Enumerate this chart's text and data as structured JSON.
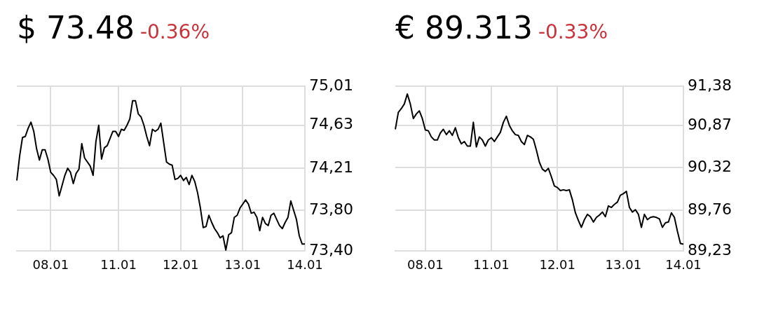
{
  "chart_data": [
    {
      "type": "line",
      "title": "$ 73.48",
      "subtitle": "-0.36%",
      "grid": true,
      "legend": false,
      "marker": "none",
      "line_style": "solid",
      "categories": [
        null,
        null,
        null,
        null,
        null,
        null,
        null,
        null,
        null,
        null,
        null,
        null,
        "08.01",
        null,
        null,
        null,
        null,
        null,
        null,
        null,
        null,
        null,
        null,
        null,
        null,
        null,
        null,
        null,
        null,
        null,
        null,
        null,
        null,
        null,
        null,
        null,
        "11.01",
        null,
        null,
        null,
        null,
        null,
        null,
        null,
        null,
        null,
        null,
        null,
        null,
        null,
        null,
        null,
        null,
        null,
        null,
        null,
        null,
        null,
        "12.01",
        null,
        null,
        null,
        null,
        null,
        null,
        null,
        null,
        null,
        null,
        null,
        null,
        null,
        null,
        null,
        null,
        null,
        null,
        null,
        null,
        null,
        "13.01",
        null,
        null,
        null,
        null,
        null,
        null,
        null,
        null,
        null,
        null,
        null,
        null,
        null,
        null,
        null,
        null,
        null,
        null,
        null,
        null,
        null,
        "14.01"
      ],
      "ylim": [
        73.4,
        75.01
      ],
      "yticks": [
        {
          "value": 73.4,
          "label": "73,40"
        },
        {
          "value": 73.8,
          "label": "73,80"
        },
        {
          "value": 74.21,
          "label": "74,21"
        },
        {
          "value": 74.63,
          "label": "74,63"
        },
        {
          "value": 75.01,
          "label": "75,01"
        }
      ],
      "series": [
        {
          "color": "#000000",
          "values": [
            74.09,
            74.33,
            74.51,
            74.52,
            74.6,
            74.66,
            74.57,
            74.4,
            74.29,
            74.39,
            74.39,
            74.3,
            74.17,
            74.14,
            74.1,
            73.94,
            74.04,
            74.14,
            74.21,
            74.17,
            74.06,
            74.16,
            74.2,
            74.45,
            74.31,
            74.27,
            74.23,
            74.14,
            74.47,
            74.63,
            74.3,
            74.41,
            74.43,
            74.5,
            74.57,
            74.57,
            74.52,
            74.59,
            74.58,
            74.63,
            74.69,
            74.87,
            74.87,
            74.74,
            74.71,
            74.63,
            74.52,
            74.43,
            74.59,
            74.57,
            74.59,
            74.65,
            74.46,
            74.27,
            74.25,
            74.24,
            74.1,
            74.11,
            74.14,
            74.09,
            74.12,
            74.05,
            74.14,
            74.08,
            73.97,
            73.82,
            73.63,
            73.64,
            73.75,
            73.68,
            73.62,
            73.58,
            73.53,
            73.55,
            73.41,
            73.56,
            73.58,
            73.73,
            73.75,
            73.82,
            73.86,
            73.9,
            73.86,
            73.77,
            73.78,
            73.73,
            73.6,
            73.73,
            73.67,
            73.65,
            73.75,
            73.77,
            73.71,
            73.65,
            73.62,
            73.68,
            73.73,
            73.89,
            73.8,
            73.71,
            73.55,
            73.47,
            73.47
          ]
        }
      ]
    },
    {
      "type": "line",
      "title": "€ 89.313",
      "subtitle": "-0.33%",
      "grid": true,
      "legend": false,
      "marker": "none",
      "line_style": "solid",
      "categories": [
        null,
        null,
        null,
        null,
        null,
        null,
        null,
        null,
        null,
        null,
        "08.01",
        null,
        null,
        null,
        null,
        null,
        null,
        null,
        null,
        null,
        null,
        null,
        null,
        null,
        null,
        null,
        null,
        null,
        null,
        null,
        null,
        null,
        "11.01",
        null,
        null,
        null,
        null,
        null,
        null,
        null,
        null,
        null,
        null,
        null,
        null,
        null,
        null,
        null,
        null,
        null,
        null,
        null,
        null,
        null,
        "12.01",
        null,
        null,
        null,
        null,
        null,
        null,
        null,
        null,
        null,
        null,
        null,
        null,
        null,
        null,
        null,
        null,
        null,
        null,
        null,
        null,
        null,
        "13.01",
        null,
        null,
        null,
        null,
        null,
        null,
        null,
        null,
        null,
        null,
        null,
        null,
        null,
        null,
        null,
        null,
        null,
        null,
        null,
        "14.01"
      ],
      "ylim": [
        89.23,
        91.38
      ],
      "yticks": [
        {
          "value": 89.23,
          "label": "89,23"
        },
        {
          "value": 89.76,
          "label": "89,76"
        },
        {
          "value": 90.32,
          "label": "90,32"
        },
        {
          "value": 90.87,
          "label": "90,87"
        },
        {
          "value": 91.38,
          "label": "91,38"
        }
      ],
      "series": [
        {
          "color": "#000000",
          "values": [
            90.82,
            91.04,
            91.09,
            91.15,
            91.28,
            91.15,
            90.96,
            91.02,
            91.06,
            90.96,
            90.81,
            90.8,
            90.72,
            90.68,
            90.68,
            90.77,
            90.82,
            90.75,
            90.8,
            90.74,
            90.84,
            90.71,
            90.63,
            90.66,
            90.6,
            90.6,
            90.91,
            90.59,
            90.72,
            90.68,
            90.6,
            90.68,
            90.71,
            90.66,
            90.72,
            90.78,
            90.91,
            90.99,
            90.87,
            90.8,
            90.75,
            90.74,
            90.66,
            90.62,
            90.74,
            90.72,
            90.69,
            90.55,
            90.39,
            90.3,
            90.27,
            90.31,
            90.2,
            90.08,
            90.06,
            90.02,
            90.03,
            90.02,
            90.03,
            89.9,
            89.73,
            89.63,
            89.54,
            89.64,
            89.71,
            89.68,
            89.61,
            89.67,
            89.7,
            89.74,
            89.68,
            89.82,
            89.8,
            89.84,
            89.87,
            89.96,
            89.98,
            90.01,
            89.8,
            89.74,
            89.77,
            89.71,
            89.54,
            89.71,
            89.64,
            89.67,
            89.68,
            89.67,
            89.65,
            89.54,
            89.6,
            89.61,
            89.73,
            89.67,
            89.49,
            89.33,
            89.32
          ]
        }
      ]
    }
  ]
}
